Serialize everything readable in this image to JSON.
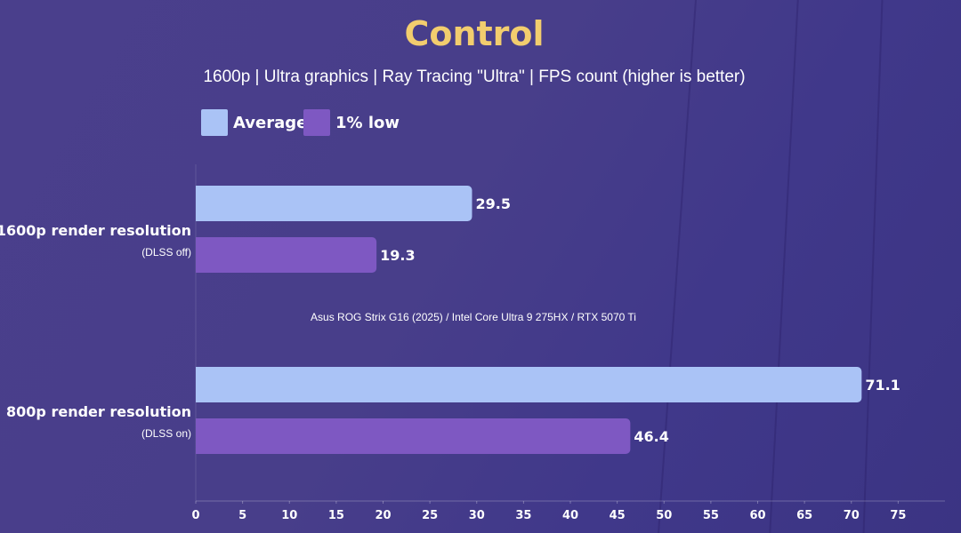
{
  "chart_data": {
    "type": "bar",
    "orientation": "horizontal",
    "title": "Control",
    "subtitle": "1600p | Ultra graphics | Ray Tracing \"Ultra\" | FPS count (higher is better)",
    "note": "Asus ROG Strix G16 (2025) / Intel Core Ultra 9 275HX / RTX 5070 Ti",
    "categories": [
      {
        "label": "1600p render resolution",
        "sublabel": "(DLSS off)"
      },
      {
        "label": "800p render resolution",
        "sublabel": "(DLSS on)"
      }
    ],
    "series": [
      {
        "name": "Average",
        "color": "#aac3f6",
        "values": [
          29.5,
          71.1
        ]
      },
      {
        "name": "1% low",
        "color": "#7e58c2",
        "values": [
          19.3,
          46.4
        ]
      }
    ],
    "xlim": [
      0,
      80
    ],
    "xticks": [
      0,
      5,
      10,
      15,
      20,
      25,
      30,
      35,
      40,
      45,
      50,
      55,
      60,
      65,
      70,
      75
    ],
    "legend": "top-left",
    "grid": false
  }
}
